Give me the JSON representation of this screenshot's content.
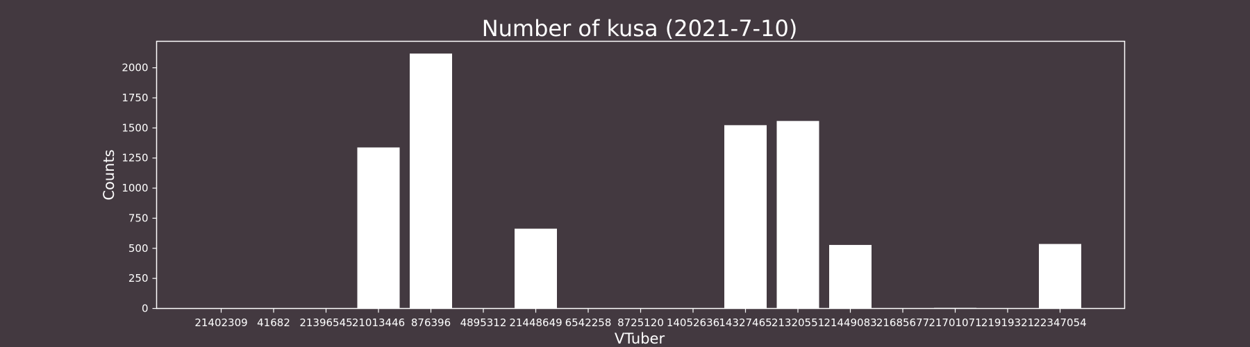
{
  "chart_data": {
    "type": "bar",
    "title": "Number of kusa (2021-7-10)",
    "xlabel": "VTuber",
    "ylabel": "Counts",
    "categories": [
      "21402309",
      "41682",
      "21396545",
      "21013446",
      "876396",
      "4895312",
      "21448649",
      "6542258",
      "8725120",
      "14052636",
      "14327465",
      "21320551",
      "21449083",
      "21685677",
      "21701071",
      "21919321",
      "22347054"
    ],
    "values": [
      0,
      0,
      0,
      1338,
      2118,
      0,
      663,
      0,
      0,
      0,
      1523,
      1558,
      528,
      0,
      5,
      0,
      536
    ],
    "ylim": [
      0,
      2220
    ],
    "yticks": [
      0,
      250,
      500,
      750,
      1000,
      1250,
      1500,
      1750,
      2000
    ],
    "grid": false,
    "legend": "none",
    "bar_color": "#ffffff",
    "background_color": "#433940",
    "axis_color": "#ffffff"
  }
}
